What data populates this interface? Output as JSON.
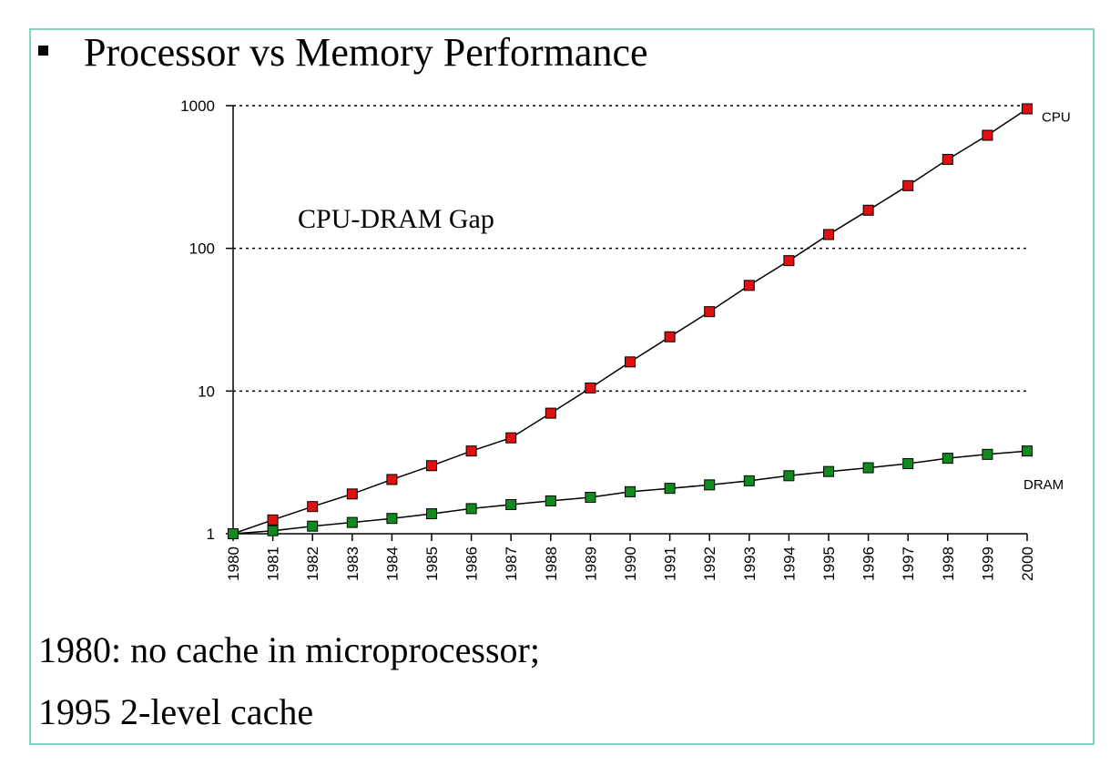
{
  "slide": {
    "title": "Processor vs Memory Performance",
    "footnote_line1": "1980: no cache in microprocessor;",
    "footnote_line2": "1995 2-level cache"
  },
  "chart_data": {
    "type": "line",
    "title": "",
    "xlabel": "",
    "ylabel": "",
    "yscale": "log",
    "ylim": [
      1,
      1000
    ],
    "y_ticks": [
      1,
      10,
      100,
      1000
    ],
    "y_tick_labels": [
      "1",
      "10",
      "100",
      "1000"
    ],
    "grid": "dotted horizontal at 10, 100, 1000",
    "x": [
      "1980",
      "1981",
      "1982",
      "1983",
      "1984",
      "1985",
      "1986",
      "1987",
      "1988",
      "1989",
      "1990",
      "1991",
      "1992",
      "1993",
      "1994",
      "1995",
      "1996",
      "1997",
      "1998",
      "1999",
      "2000"
    ],
    "annotation": "CPU-DRAM Gap",
    "series": [
      {
        "name": "CPU",
        "color": "#e01010",
        "values": [
          1,
          1.25,
          1.55,
          1.9,
          2.4,
          3.0,
          3.8,
          4.7,
          7.0,
          10.5,
          16,
          24,
          36,
          55,
          82,
          125,
          185,
          275,
          420,
          620,
          950
        ]
      },
      {
        "name": "DRAM",
        "color": "#0e8a1e",
        "values": [
          1,
          1.05,
          1.13,
          1.2,
          1.28,
          1.38,
          1.5,
          1.6,
          1.7,
          1.8,
          1.97,
          2.08,
          2.2,
          2.35,
          2.55,
          2.73,
          2.9,
          3.1,
          3.38,
          3.6,
          3.8
        ]
      }
    ]
  }
}
